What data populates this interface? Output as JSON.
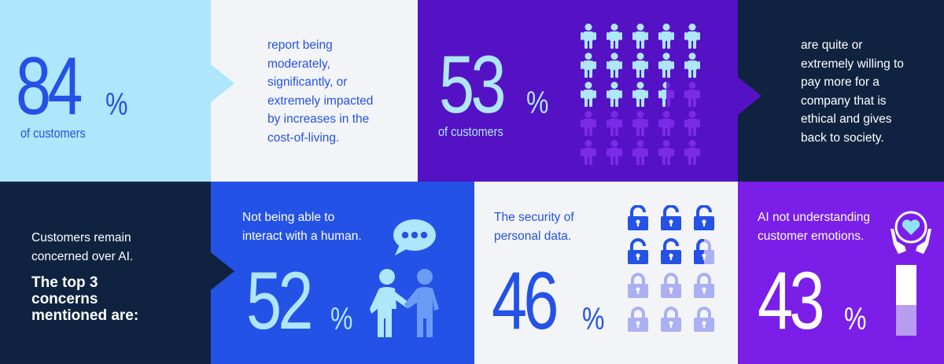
{
  "stat1": {
    "number": "84",
    "percent_sign": "%",
    "caption": "of customers",
    "text_lines": [
      "report being",
      "moderately,",
      "significantly, or",
      "extremely impacted",
      "by increases in the",
      "cost-of-living."
    ],
    "value_percent": 84
  },
  "stat2": {
    "number": "53",
    "percent_sign": "%",
    "caption": "of customers",
    "text_lines": [
      "are quite or",
      "extremely willing to",
      "pay more for a",
      "company that is",
      "ethical and gives",
      "back to society."
    ],
    "value_percent": 53,
    "icon": "person-icon"
  },
  "intro": {
    "line1": "Customers remain",
    "line2": "concerned over AI.",
    "heading_lines": [
      "The top 3",
      "concerns",
      "mentioned are:"
    ]
  },
  "concern1": {
    "text_lines": [
      "Not being able to",
      "interact with a human."
    ],
    "number": "52",
    "percent_sign": "%",
    "value_percent": 52,
    "icon": "handshake-people-icon"
  },
  "concern2": {
    "text_lines": [
      "The security of",
      "personal data."
    ],
    "number": "46",
    "percent_sign": "%",
    "value_percent": 46,
    "icon": "padlock-icon"
  },
  "concern3": {
    "text_lines": [
      "AI not understanding",
      "customer emotions."
    ],
    "number": "43",
    "percent_sign": "%",
    "value_percent": 43,
    "icon": "heart-hands-icon"
  },
  "colors": {
    "light_blue": "#aee6fb",
    "pale_gray": "#f3f4f8",
    "deep_purple": "#5512c4",
    "navy": "#0f2340",
    "royal_blue": "#2452e6",
    "violet": "#7a1ee8",
    "cyan": "#8fe3f7",
    "lavender": "#aab0f0"
  }
}
